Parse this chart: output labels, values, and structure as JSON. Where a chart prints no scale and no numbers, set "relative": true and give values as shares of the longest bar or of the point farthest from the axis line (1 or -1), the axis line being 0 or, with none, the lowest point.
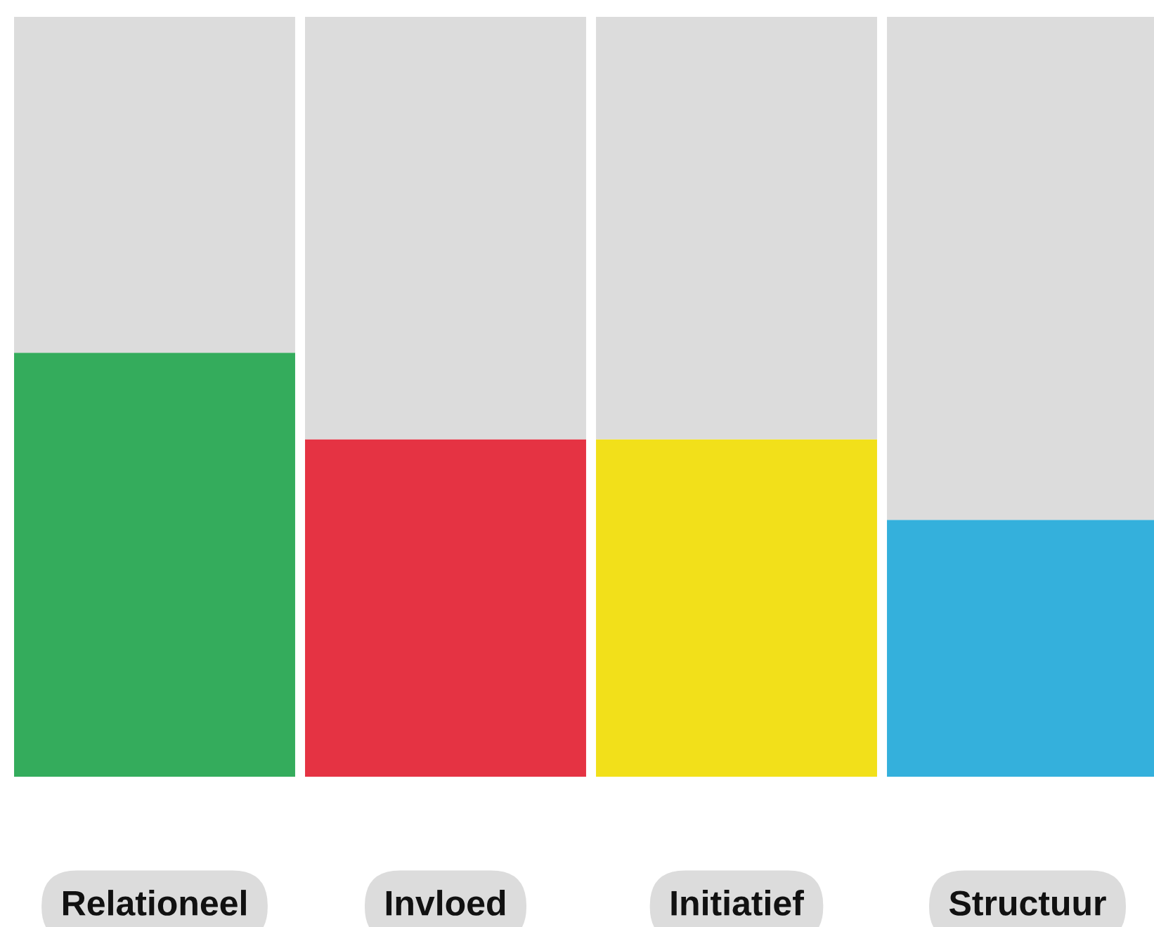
{
  "chart_data": {
    "type": "bar",
    "relative": true,
    "stacked": true,
    "categories": [
      "Relationeel",
      "Invloed",
      "Initiatief",
      "Structuur"
    ],
    "series": [
      {
        "colors": [
          "#34ac5c",
          "#e53343",
          "#f2e01a",
          "#34b0dc"
        ],
        "values": [
          0.558,
          0.444,
          0.444,
          0.338
        ]
      },
      {
        "color": "#dcdcdc",
        "values": [
          0.442,
          0.556,
          0.556,
          0.662
        ]
      }
    ]
  }
}
